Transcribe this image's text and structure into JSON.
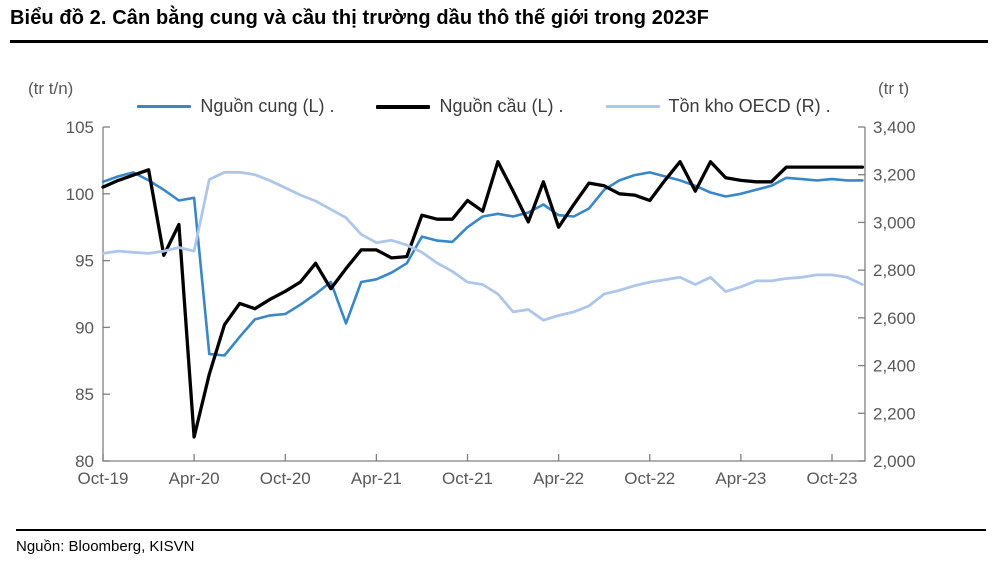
{
  "header": {
    "title": "Biểu đồ 2. Cân bằng cung và cầu thị trường dầu thô thế giới trong 2023F"
  },
  "footer": {
    "source": "Nguồn: Bloomberg, KISVN"
  },
  "chart_data": {
    "type": "line",
    "title": "Biểu đồ 2. Cân bằng cung và cầu thị trường dầu thô thế giới trong 2023F",
    "grid": false,
    "legend_position": "top",
    "left_axis": {
      "unit_label": "(tr t/n)",
      "min": 80,
      "max": 105,
      "ticks": [
        105,
        100,
        95,
        90,
        85,
        80
      ],
      "tick_labels": [
        "105",
        "100",
        "95",
        "90",
        "85",
        "80"
      ]
    },
    "right_axis": {
      "unit_label": "(tr t)",
      "min": 2000,
      "max": 3400,
      "ticks": [
        3400,
        3200,
        3000,
        2800,
        2600,
        2400,
        2200,
        2000
      ],
      "tick_labels": [
        "3,400",
        "3,200",
        "3,000",
        "2,800",
        "2,600",
        "2,400",
        "2,200",
        "2,000"
      ]
    },
    "x_labels": [
      "Oct-19",
      "Nov-19",
      "Dec-19",
      "Jan-20",
      "Feb-20",
      "Mar-20",
      "Apr-20",
      "May-20",
      "Jun-20",
      "Jul-20",
      "Aug-20",
      "Sep-20",
      "Oct-20",
      "Nov-20",
      "Dec-20",
      "Jan-21",
      "Feb-21",
      "Mar-21",
      "Apr-21",
      "May-21",
      "Jun-21",
      "Jul-21",
      "Aug-21",
      "Sep-21",
      "Oct-21",
      "Nov-21",
      "Dec-21",
      "Jan-22",
      "Feb-22",
      "Mar-22",
      "Apr-22",
      "May-22",
      "Jun-22",
      "Jul-22",
      "Aug-22",
      "Sep-22",
      "Oct-22",
      "Nov-22",
      "Dec-22",
      "Jan-23",
      "Feb-23",
      "Mar-23",
      "Apr-23",
      "May-23",
      "Jun-23",
      "Jul-23",
      "Aug-23",
      "Sep-23",
      "Oct-23",
      "Nov-23",
      "Dec-23"
    ],
    "x_tick_label_indices": [
      0,
      6,
      12,
      18,
      24,
      30,
      36,
      42,
      48
    ],
    "x_tick_labels": [
      "Oct-19",
      "Apr-20",
      "Oct-20",
      "Apr-21",
      "Oct-21",
      "Apr-22",
      "Oct-22",
      "Apr-23",
      "Oct-23"
    ],
    "series": [
      {
        "id": "supply",
        "name": "Nguồn cung (L) .",
        "axis": "left",
        "color": "#3a87c8",
        "values": [
          100.9,
          101.3,
          101.6,
          101.0,
          100.3,
          99.5,
          99.7,
          88.0,
          87.9,
          89.3,
          90.6,
          90.9,
          91.0,
          91.7,
          92.5,
          93.4,
          90.3,
          93.4,
          93.6,
          94.1,
          94.8,
          96.8,
          96.5,
          96.4,
          97.5,
          98.3,
          98.5,
          98.3,
          98.6,
          99.2,
          98.4,
          98.3,
          98.9,
          100.3,
          101.0,
          101.4,
          101.6,
          101.3,
          101.0,
          100.6,
          100.1,
          99.8,
          100.0,
          100.3,
          100.6,
          101.2,
          101.1,
          101.0,
          101.1,
          101.0,
          101.0
        ]
      },
      {
        "id": "demand",
        "name": "Nguồn cầu (L) .",
        "axis": "left",
        "color": "#000000",
        "values": [
          100.5,
          101.0,
          101.4,
          101.8,
          95.4,
          97.7,
          81.8,
          86.5,
          90.2,
          91.8,
          91.4,
          92.1,
          92.7,
          93.4,
          94.8,
          92.9,
          94.4,
          95.8,
          95.8,
          95.2,
          95.3,
          98.4,
          98.1,
          98.1,
          99.5,
          98.7,
          102.4,
          100.2,
          97.9,
          100.9,
          97.5,
          99.2,
          100.8,
          100.6,
          100.0,
          99.9,
          99.5,
          101.0,
          102.4,
          100.2,
          102.4,
          101.2,
          101.0,
          100.9,
          100.9,
          102.0,
          102.0,
          102.0,
          102.0,
          102.0,
          102.0
        ]
      },
      {
        "id": "oecd-stocks",
        "name": "Tồn kho OECD (R) .",
        "axis": "right",
        "color": "#aec6e8",
        "values": [
          2870,
          2880,
          2875,
          2870,
          2880,
          2895,
          2880,
          3180,
          3210,
          3210,
          3200,
          3175,
          3145,
          3115,
          3090,
          3055,
          3020,
          2950,
          2915,
          2925,
          2905,
          2875,
          2830,
          2795,
          2750,
          2740,
          2700,
          2625,
          2635,
          2590,
          2610,
          2625,
          2650,
          2700,
          2715,
          2735,
          2750,
          2760,
          2770,
          2740,
          2770,
          2710,
          2730,
          2755,
          2755,
          2765,
          2770,
          2780,
          2780,
          2770,
          2740
        ]
      }
    ]
  }
}
